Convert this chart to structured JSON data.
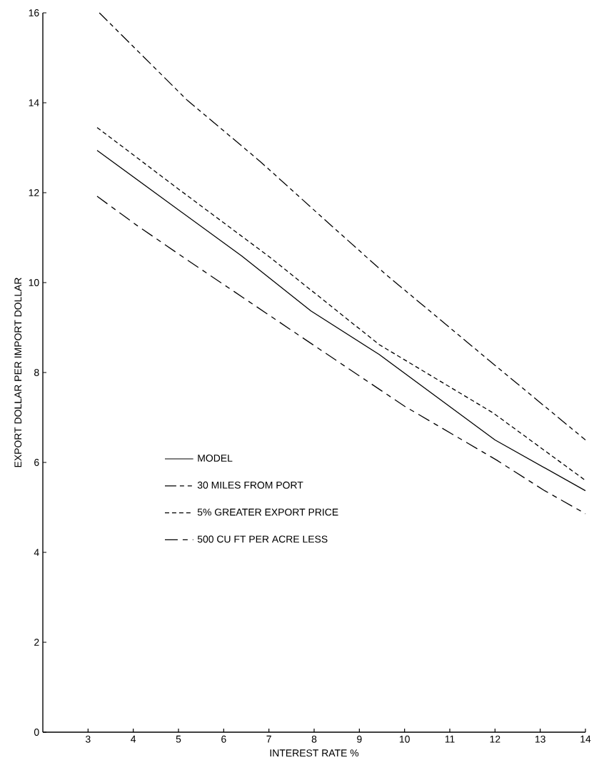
{
  "chart_data": {
    "type": "line",
    "xlabel": "INTEREST RATE %",
    "ylabel": "EXPORT DOLLAR PER IMPORT DOLLAR",
    "xlim": [
      2,
      14
    ],
    "ylim": [
      0,
      16
    ],
    "xticks": [
      3,
      4,
      5,
      6,
      7,
      8,
      9,
      10,
      11,
      12,
      13,
      14
    ],
    "yticks": [
      0,
      2,
      4,
      6,
      8,
      10,
      12,
      14,
      16
    ],
    "grid": false,
    "legend": "left",
    "marker": "none",
    "series": [
      {
        "name": "MODEL",
        "color": "#000000",
        "line_style": "solid",
        "x": [
          3.2,
          6.4,
          7.93,
          9.44,
          12,
          14
        ],
        "values": [
          12.94,
          10.59,
          9.37,
          8.4,
          6.5,
          5.37
        ]
      },
      {
        "name": "30 MILES FROM PORT",
        "color": "#000000",
        "line_style": "dashed",
        "x": [
          3.25,
          5.2,
          6.8,
          8.2,
          9.6,
          12,
          14
        ],
        "values": [
          16,
          14.05,
          12.7,
          11.43,
          10.17,
          8.16,
          6.5
        ]
      },
      {
        "name": "5% GREATER EXPORT PRICE",
        "color": "#000000",
        "line_style": "dashed",
        "x": [
          3.2,
          5,
          7,
          9.44,
          11.96,
          14
        ],
        "values": [
          13.45,
          12.08,
          10.58,
          8.62,
          7.1,
          5.6
        ]
      },
      {
        "name": "500 CU FT PER ACRE LESS",
        "color": "#000000",
        "line_style": "dashed",
        "x": [
          3.2,
          4.07,
          5.2,
          8,
          10,
          12.04,
          13.1,
          14
        ],
        "values": [
          11.92,
          11.28,
          10.5,
          8.6,
          7.25,
          6.05,
          5.37,
          4.86
        ]
      }
    ]
  }
}
